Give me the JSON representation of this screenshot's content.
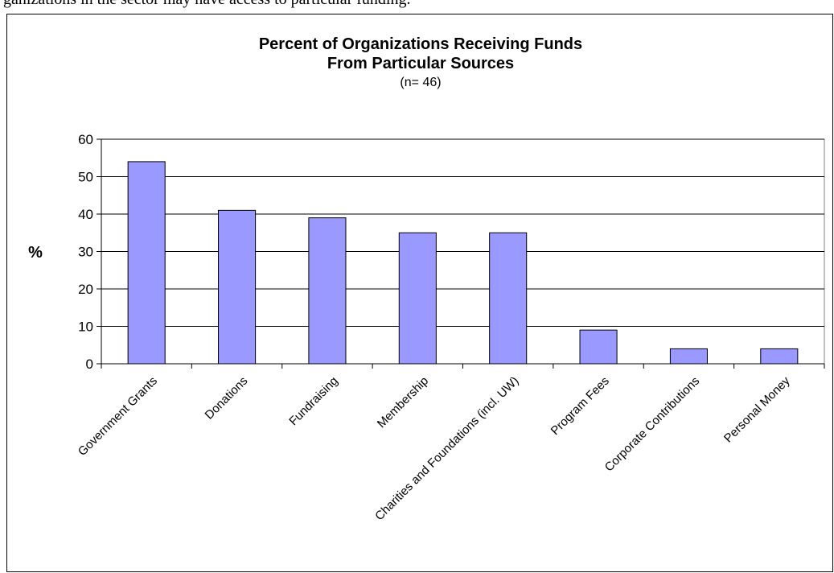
{
  "page": {
    "top_text": "ganizations in the sector may have access to particular funding."
  },
  "chart_data": {
    "type": "bar",
    "title_lines": [
      "Percent of Organizations Receiving Funds",
      "From Particular Sources"
    ],
    "subtitle": "(n= 46)",
    "xlabel": "",
    "ylabel": "%",
    "ylim": [
      0,
      60
    ],
    "yticks": [
      0,
      10,
      20,
      30,
      40,
      50,
      60
    ],
    "grid": true,
    "bar_color": "#9999ff",
    "categories": [
      "Government Grants",
      "Donations",
      "Fundraising",
      "Membership",
      "Charities and Foundations (incl. UW)",
      "Program Fees",
      "Corporate Contributions",
      "Personal Money"
    ],
    "values": [
      54,
      41,
      39,
      35,
      35,
      9,
      4,
      4
    ]
  }
}
